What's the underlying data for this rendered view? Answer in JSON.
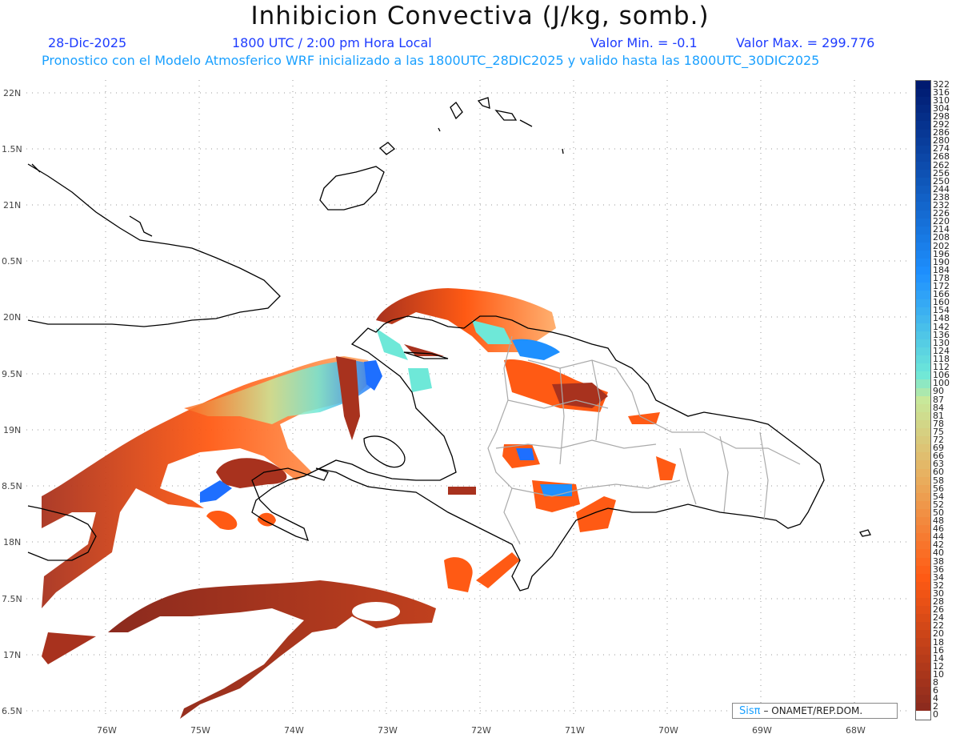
{
  "header": {
    "title": "Inhibicion Convectiva (J/kg, somb.)",
    "date": "28-Dic-2025",
    "time": "1800 UTC / 2:00 pm Hora Local",
    "value_min": "Valor Min. = -0.1",
    "value_max": "Valor Max. = 299.776",
    "model_info": "Pronostico con el Modelo Atmosferico WRF inicializado a las 1800UTC_28DIC2025 y valido hasta las  1800UTC_30DIC2025"
  },
  "map": {
    "lon_labels": [
      "76W",
      "75W",
      "74W",
      "73W",
      "72W",
      "71W",
      "70W",
      "69W",
      "68W"
    ],
    "lat_labels": [
      "22N",
      "1.5N",
      "21N",
      "0.5N",
      "20N",
      "9.5N",
      "19N",
      "8.5N",
      "18N",
      "7.5N",
      "17N",
      "6.5N"
    ],
    "grid": true,
    "coastline_color": "#000000",
    "border_color": "#aaaaaa"
  },
  "legend": {
    "labels": [
      "322",
      "316",
      "310",
      "304",
      "298",
      "292",
      "286",
      "280",
      "274",
      "268",
      "262",
      "256",
      "250",
      "244",
      "238",
      "232",
      "226",
      "220",
      "214",
      "208",
      "202",
      "196",
      "190",
      "184",
      "178",
      "172",
      "166",
      "160",
      "154",
      "148",
      "142",
      "136",
      "130",
      "124",
      "118",
      "112",
      "106",
      "100",
      "90",
      "87",
      "84",
      "81",
      "78",
      "75",
      "72",
      "69",
      "66",
      "63",
      "60",
      "58",
      "56",
      "54",
      "52",
      "50",
      "48",
      "46",
      "44",
      "42",
      "40",
      "38",
      "36",
      "34",
      "32",
      "30",
      "28",
      "26",
      "24",
      "22",
      "20",
      "18",
      "16",
      "14",
      "12",
      "10",
      "8",
      "6",
      "4",
      "2",
      "0"
    ],
    "colors_top": "#001a70",
    "colors_mid_blue": "#1e90ff",
    "colors_cyan": "#6ee8d8",
    "colors_green": "#c8e89a",
    "colors_orange": "#ff5a14",
    "colors_brown": "#8b2a1e"
  },
  "credit": {
    "brand": "Sisπ",
    "org": "– ONAMET/REP.DOM."
  }
}
